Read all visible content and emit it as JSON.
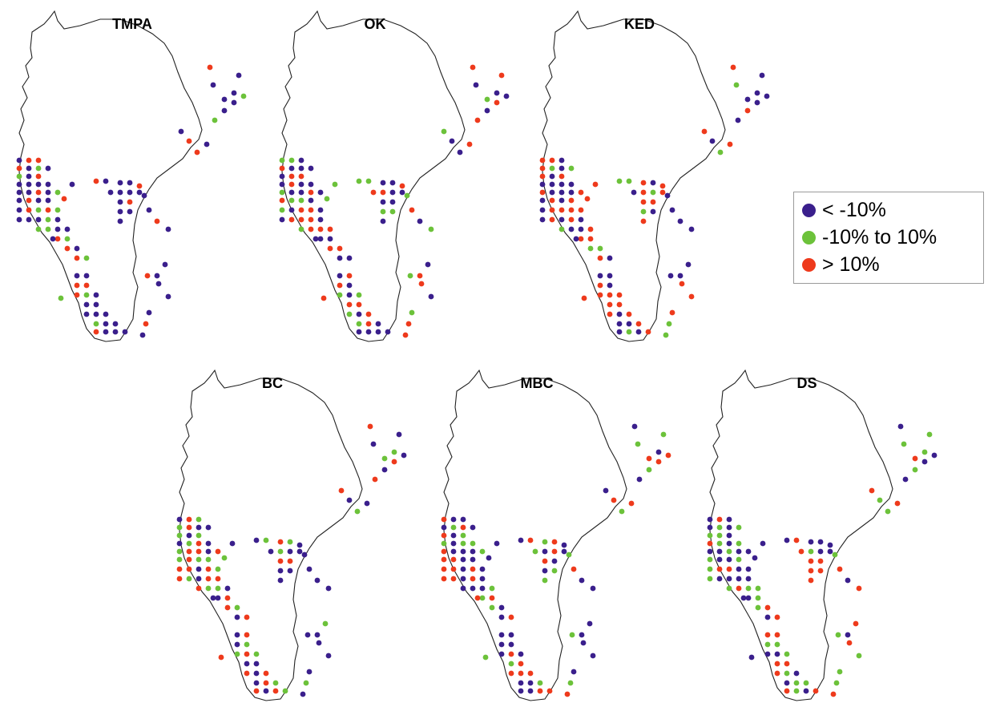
{
  "figure": {
    "panels": [
      {
        "title": "TMPA"
      },
      {
        "title": "OK"
      },
      {
        "title": "KED"
      },
      {
        "title": "BC"
      },
      {
        "title": "MBC"
      },
      {
        "title": "DS"
      }
    ]
  },
  "legend": {
    "items": [
      {
        "label": "< -10%",
        "color": "#3a1f8c"
      },
      {
        "label": "-10% to 10%",
        "color": "#6cc23a"
      },
      {
        "label": "> 10%",
        "color": "#ee3a1c"
      }
    ]
  },
  "colors": {
    "under": "#3a1f8c",
    "neutral": "#6cc23a",
    "over": "#ee3a1c",
    "outline": "#222222"
  }
}
